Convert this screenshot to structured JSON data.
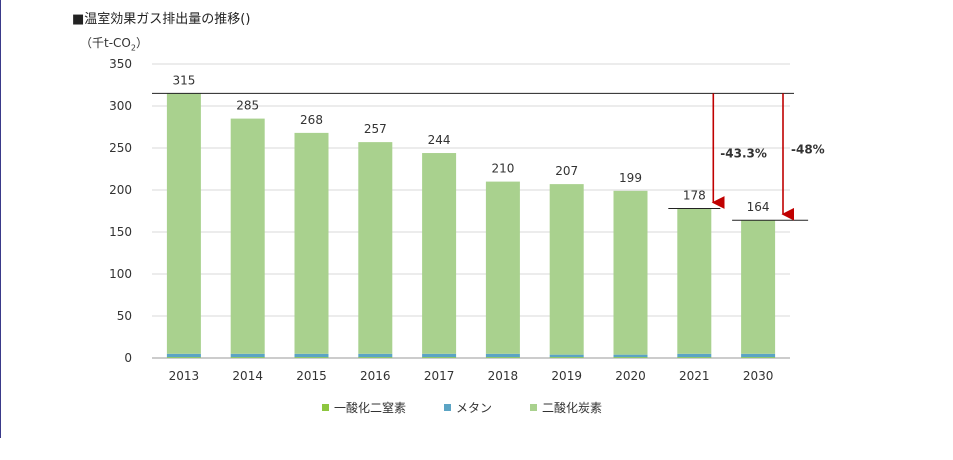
{
  "chart_data": {
    "type": "bar",
    "title": "■温室効果ガス排出量の推移()",
    "unit_prefix": "（千t-CO",
    "unit_sub": "2",
    "unit_suffix": "）",
    "categories": [
      "2013",
      "2014",
      "2015",
      "2016",
      "2017",
      "2018",
      "2019",
      "2020",
      "2021",
      "2030"
    ],
    "totals": [
      315,
      285,
      268,
      257,
      244,
      210,
      207,
      199,
      178,
      164
    ],
    "series": [
      {
        "name": "一酸化二窒素",
        "values": [
          1,
          1,
          1,
          1,
          1,
          1,
          1,
          1,
          1,
          1
        ],
        "color": "#8dc63f"
      },
      {
        "name": "メタン",
        "values": [
          4,
          4,
          4,
          4,
          4,
          4,
          3,
          3,
          4,
          4
        ],
        "color": "#5ba4c4"
      },
      {
        "name": "二酸化炭素",
        "values": [
          310,
          280,
          263,
          252,
          239,
          205,
          203,
          195,
          173,
          159
        ],
        "color": "#a9d18e"
      }
    ],
    "ylim": [
      0,
      350
    ],
    "yticks": [
      0,
      50,
      100,
      150,
      200,
      250,
      300,
      350
    ],
    "annotations": [
      {
        "label": "-43.3%",
        "from": 315,
        "to": 178,
        "category": "2021"
      },
      {
        "label": "-48%",
        "from": 315,
        "to": 164,
        "category": "2030"
      }
    ],
    "grid": true,
    "legend_position": "bottom",
    "arrow_color": "#c00000"
  }
}
